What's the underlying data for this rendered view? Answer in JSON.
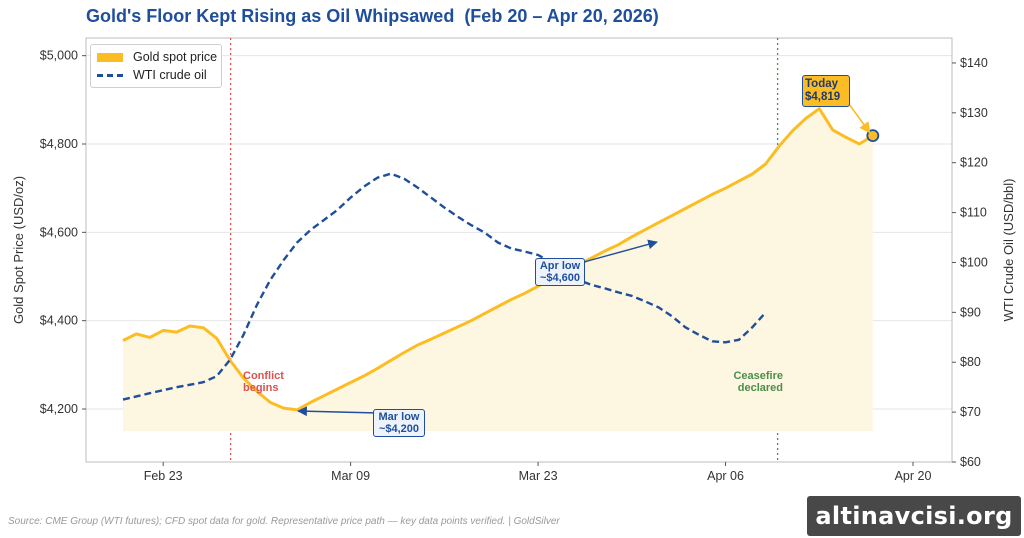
{
  "title": "Gold's Floor Kept Rising as Oil Whipsawed  (Feb 20 – Apr 20, 2026)",
  "source": "Source: CME Group (WTI futures); CFD spot data for gold. Representative price path — key data points verified. | GoldSilver",
  "watermark": "altinavcisi.org",
  "colors": {
    "gold": "#fbbd23",
    "oil": "#1f4e9c",
    "conflict": "#d9534f",
    "ceasefire": "#4a8f4a"
  },
  "chart_data": {
    "type": "line",
    "title": "Gold's Floor Kept Rising as Oil Whipsawed  (Feb 20 – Apr 20, 2026)",
    "xlabel": "",
    "ylabel": "Gold Spot Price (USD/oz)",
    "y2label": "WTI Crude Oil (USD/bbl)",
    "ylim": [
      4080,
      5040
    ],
    "y2lim": [
      60,
      145
    ],
    "ylabels": [
      "$4,200",
      "$4,400",
      "$4,600",
      "$4,800",
      "$5,000"
    ],
    "yticks": [
      4200,
      4400,
      4600,
      4800,
      5000
    ],
    "y2labels": [
      "$60",
      "$70",
      "$80",
      "$90",
      "$100",
      "$110",
      "$120",
      "$130",
      "$140"
    ],
    "y2ticks": [
      60,
      70,
      80,
      90,
      100,
      110,
      120,
      130,
      140
    ],
    "xticks": [
      {
        "label": "Feb 23",
        "day": 3
      },
      {
        "label": "Mar 09",
        "day": 17
      },
      {
        "label": "Mar 23",
        "day": 31
      },
      {
        "label": "Apr 06",
        "day": 45
      },
      {
        "label": "Apr 20",
        "day": 59
      }
    ],
    "grid": true,
    "legend": "top-left",
    "series": [
      {
        "name": "Gold spot price",
        "axis": "left",
        "points": [
          [
            0,
            4355
          ],
          [
            1,
            4370
          ],
          [
            2,
            4362
          ],
          [
            3,
            4378
          ],
          [
            4,
            4374
          ],
          [
            5,
            4388
          ],
          [
            6,
            4384
          ],
          [
            7,
            4360
          ],
          [
            8,
            4310
          ],
          [
            9,
            4270
          ],
          [
            10,
            4240
          ],
          [
            11,
            4215
          ],
          [
            12,
            4202
          ],
          [
            13,
            4198
          ],
          [
            14,
            4215
          ],
          [
            15,
            4230
          ],
          [
            16,
            4245
          ],
          [
            17,
            4260
          ],
          [
            18,
            4275
          ],
          [
            19,
            4292
          ],
          [
            20,
            4310
          ],
          [
            21,
            4328
          ],
          [
            22,
            4345
          ],
          [
            23,
            4358
          ],
          [
            24,
            4372
          ],
          [
            25,
            4386
          ],
          [
            26,
            4400
          ],
          [
            27,
            4416
          ],
          [
            28,
            4432
          ],
          [
            29,
            4448
          ],
          [
            30,
            4462
          ],
          [
            31,
            4478
          ],
          [
            32,
            4494
          ],
          [
            33,
            4510
          ],
          [
            34,
            4526
          ],
          [
            35,
            4542
          ],
          [
            36,
            4558
          ],
          [
            37,
            4572
          ],
          [
            38,
            4590
          ],
          [
            39,
            4606
          ],
          [
            40,
            4622
          ],
          [
            41,
            4638
          ],
          [
            42,
            4654
          ],
          [
            43,
            4670
          ],
          [
            44,
            4686
          ],
          [
            45,
            4700
          ],
          [
            46,
            4716
          ],
          [
            47,
            4732
          ],
          [
            48,
            4755
          ],
          [
            49,
            4795
          ],
          [
            50,
            4830
          ],
          [
            51,
            4858
          ],
          [
            52,
            4880
          ],
          [
            53,
            4832
          ],
          [
            54,
            4815
          ],
          [
            55,
            4800
          ],
          [
            56,
            4819
          ]
        ]
      },
      {
        "name": "WTI crude oil",
        "axis": "right",
        "points": [
          [
            0,
            72.5
          ],
          [
            2,
            73.8
          ],
          [
            4,
            75.0
          ],
          [
            6,
            76.0
          ],
          [
            7,
            77.2
          ],
          [
            8,
            80.5
          ],
          [
            9,
            85.5
          ],
          [
            10,
            91.5
          ],
          [
            11,
            96.5
          ],
          [
            12,
            100.5
          ],
          [
            13,
            104.0
          ],
          [
            14,
            106.5
          ],
          [
            15,
            108.5
          ],
          [
            16,
            110.5
          ],
          [
            17,
            113.0
          ],
          [
            18,
            115.2
          ],
          [
            19,
            117.0
          ],
          [
            20,
            117.8
          ],
          [
            21,
            116.8
          ],
          [
            22,
            115.0
          ],
          [
            23,
            113.0
          ],
          [
            24,
            111.0
          ],
          [
            25,
            109.2
          ],
          [
            26,
            107.5
          ],
          [
            27,
            106.0
          ],
          [
            28,
            104.0
          ],
          [
            29,
            102.8
          ],
          [
            30,
            102.2
          ],
          [
            31,
            101.5
          ],
          [
            32,
            100.0
          ],
          [
            33,
            98.0
          ],
          [
            34,
            96.5
          ],
          [
            35,
            95.5
          ],
          [
            36,
            94.8
          ],
          [
            37,
            94.0
          ],
          [
            38,
            93.3
          ],
          [
            39,
            92.2
          ],
          [
            40,
            91.0
          ],
          [
            41,
            89.2
          ],
          [
            42,
            87.0
          ],
          [
            43,
            85.5
          ],
          [
            44,
            84.2
          ],
          [
            45,
            84.0
          ],
          [
            46,
            84.5
          ],
          [
            47,
            87.0
          ],
          [
            48,
            90.0
          ]
        ]
      }
    ],
    "events": [
      {
        "label": "Conflict\nbegins",
        "day": 8
      },
      {
        "label": "Ceasefire\ndeclared",
        "day": 49
      }
    ],
    "annotations": [
      {
        "label": "Mar low\n~$4,200",
        "day": 13,
        "value": 4200
      },
      {
        "label": "Apr low\n~$4,600",
        "day": 38,
        "value": 4590
      },
      {
        "label": "Today\n$4,819",
        "day": 56,
        "value": 4819
      }
    ]
  },
  "legend": {
    "gold": "Gold spot price",
    "oil": "WTI crude oil"
  },
  "callouts": {
    "conflict": [
      "Conflict",
      "begins"
    ],
    "ceasefire": [
      "Ceasefire",
      "declared"
    ],
    "mar_low": [
      "Mar low",
      "~$4,200"
    ],
    "apr_low": [
      "Apr low",
      "~$4,600"
    ],
    "today": [
      "Today",
      "$4,819"
    ]
  }
}
